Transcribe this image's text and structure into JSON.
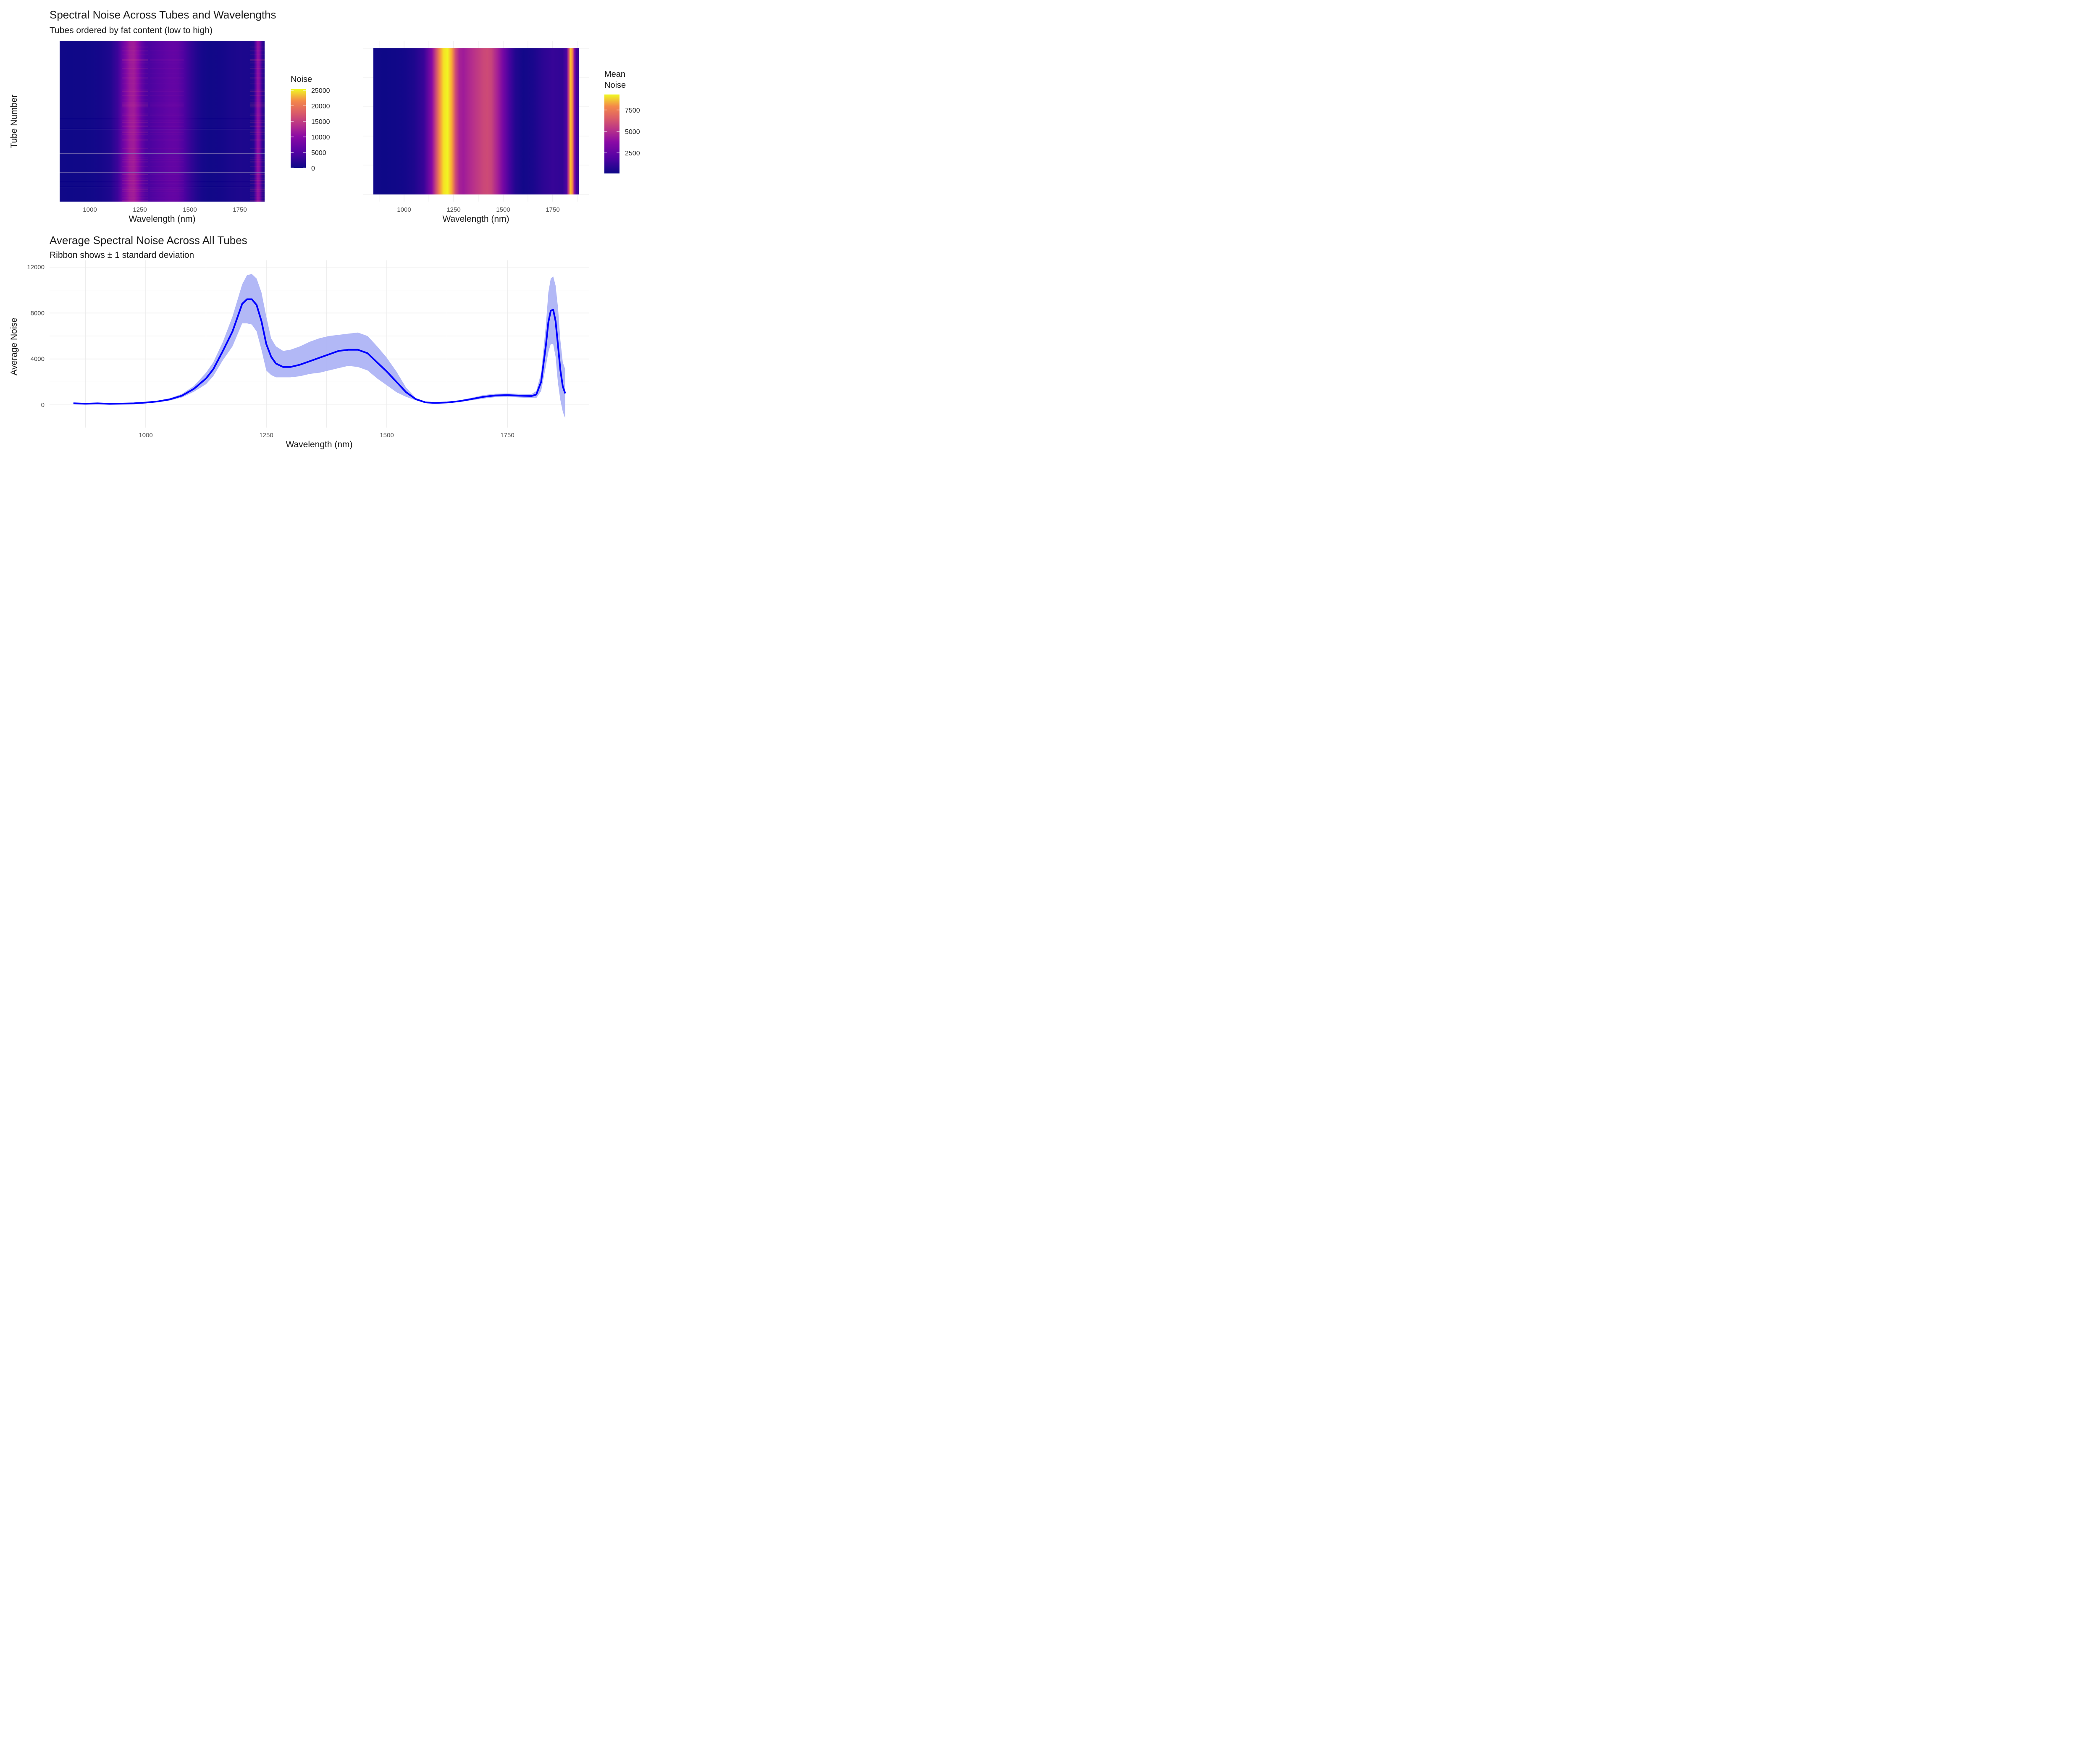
{
  "top_left": {
    "title": "Spectral Noise Across Tubes and Wavelengths",
    "subtitle": "Tubes ordered by fat content (low to high)",
    "xlabel": "Wavelength (nm)",
    "ylabel": "Tube Number",
    "legend_title": "Noise"
  },
  "top_right": {
    "xlabel": "Wavelength (nm)",
    "legend_title_line1": "Mean",
    "legend_title_line2": "Noise"
  },
  "bottom": {
    "title": "Average Spectral Noise Across All Tubes",
    "subtitle": "Ribbon shows ± 1 standard deviation",
    "xlabel": "Wavelength (nm)",
    "ylabel": "Average Noise"
  },
  "colors": {
    "line": "#0000ff",
    "ribbon": "#aab0f5",
    "grid": "#e5e5e5",
    "palette": "plasma"
  },
  "chart_data": [
    {
      "type": "heatmap",
      "title": "Spectral Noise Across Tubes and Wavelengths",
      "subtitle": "Tubes ordered by fat content (low to high)",
      "xlabel": "Wavelength (nm)",
      "ylabel": "Tube Number",
      "xlim": [
        850,
        1870
      ],
      "x_ticks": [
        1000,
        1250,
        1500,
        1750
      ],
      "legend": {
        "title": "Noise",
        "ticks": [
          0,
          5000,
          10000,
          15000,
          20000,
          25000
        ],
        "range": [
          0,
          25000
        ],
        "position": "right"
      },
      "grid": false
    },
    {
      "type": "heatmap",
      "xlabel": "Wavelength (nm)",
      "xlim": [
        850,
        1870
      ],
      "x_ticks": [
        1000,
        1250,
        1500,
        1750
      ],
      "legend": {
        "title": "Mean Noise",
        "ticks": [
          2500,
          5000,
          7500
        ],
        "range": [
          100,
          9300
        ],
        "position": "right"
      },
      "x": [
        850,
        900,
        950,
        1000,
        1050,
        1100,
        1140,
        1160,
        1180,
        1200,
        1220,
        1240,
        1260,
        1280,
        1300,
        1350,
        1400,
        1420,
        1440,
        1470,
        1500,
        1530,
        1560,
        1600,
        1650,
        1700,
        1750,
        1800,
        1820,
        1830,
        1840,
        1850,
        1860,
        1870
      ],
      "values": [
        150,
        120,
        150,
        220,
        400,
        900,
        2600,
        4700,
        6800,
        8800,
        9200,
        7500,
        4800,
        3500,
        3300,
        4000,
        4700,
        4800,
        4600,
        3500,
        2200,
        1200,
        500,
        200,
        320,
        650,
        860,
        760,
        1300,
        4500,
        8200,
        6500,
        2500,
        1000
      ],
      "grid": true
    },
    {
      "type": "area",
      "title": "Average Spectral Noise Across All Tubes",
      "subtitle": "Ribbon shows ± 1 standard deviation",
      "xlabel": "Wavelength (nm)",
      "ylabel": "Average Noise",
      "xlim": [
        810,
        1910
      ],
      "ylim": [
        -1800,
        12000
      ],
      "x_ticks": [
        1000,
        1250,
        1500,
        1750
      ],
      "y_ticks": [
        0,
        4000,
        8000,
        12000
      ],
      "grid": true,
      "series": [
        {
          "x": [
            850,
            875,
            900,
            925,
            950,
            975,
            1000,
            1025,
            1050,
            1075,
            1100,
            1125,
            1140,
            1160,
            1180,
            1200,
            1210,
            1220,
            1230,
            1240,
            1250,
            1260,
            1270,
            1285,
            1300,
            1320,
            1340,
            1360,
            1380,
            1400,
            1420,
            1440,
            1460,
            1480,
            1500,
            1520,
            1540,
            1560,
            1580,
            1600,
            1625,
            1650,
            1675,
            1700,
            1725,
            1750,
            1775,
            1800,
            1810,
            1820,
            1830,
            1835,
            1840,
            1845,
            1850,
            1855,
            1860,
            1865,
            1870
          ],
          "mean": [
            140,
            100,
            130,
            90,
            110,
            130,
            200,
            300,
            480,
            800,
            1400,
            2300,
            3100,
            4700,
            6400,
            8800,
            9200,
            9200,
            8700,
            7300,
            5300,
            4200,
            3600,
            3300,
            3300,
            3500,
            3800,
            4100,
            4400,
            4700,
            4800,
            4800,
            4500,
            3700,
            2900,
            2000,
            1100,
            500,
            220,
            170,
            210,
            320,
            500,
            700,
            820,
            850,
            800,
            770,
            900,
            2000,
            5200,
            7200,
            8200,
            8300,
            7300,
            5200,
            3000,
            1600,
            1000
          ],
          "upper": [
            160,
            140,
            180,
            140,
            160,
            180,
            250,
            360,
            580,
            950,
            1650,
            2800,
            3700,
            5500,
            7700,
            10500,
            11300,
            11400,
            11000,
            9800,
            7700,
            5800,
            5100,
            4700,
            4800,
            5100,
            5500,
            5800,
            6000,
            6100,
            6200,
            6300,
            6000,
            5100,
            4100,
            2900,
            1500,
            600,
            270,
            200,
            260,
            390,
            610,
            850,
            970,
            1000,
            960,
            950,
            1200,
            2800,
            7000,
            9800,
            11000,
            11200,
            10400,
            8500,
            5600,
            3700,
            3100
          ],
          "lower": [
            120,
            60,
            80,
            40,
            60,
            80,
            150,
            240,
            380,
            650,
            1150,
            1800,
            2500,
            3900,
            5100,
            7100,
            7100,
            7000,
            6400,
            4800,
            3000,
            2600,
            2400,
            2400,
            2400,
            2500,
            2700,
            2800,
            3000,
            3200,
            3400,
            3300,
            3000,
            2300,
            1700,
            1100,
            700,
            400,
            170,
            140,
            160,
            250,
            390,
            550,
            670,
            700,
            640,
            590,
            600,
            1200,
            3400,
            4600,
            5300,
            5300,
            4200,
            1900,
            400,
            -600,
            -1200
          ]
        }
      ]
    }
  ]
}
